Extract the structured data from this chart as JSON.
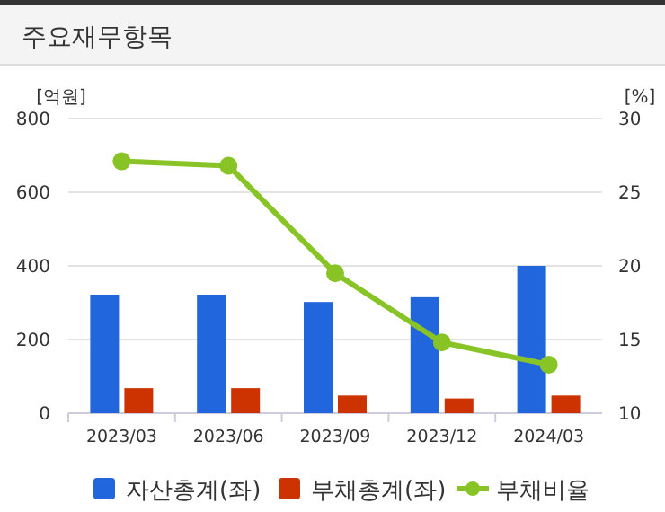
{
  "chart_data": {
    "type": "bar",
    "title": "주요재무항목",
    "ylabel": "[억원]",
    "y2label": "[%]",
    "categories": [
      "2023/03",
      "2023/06",
      "2023/09",
      "2023/12",
      "2024/03"
    ],
    "series": [
      {
        "name": "자산총계(좌)",
        "color": "#2266dd",
        "values": [
          322,
          322,
          302,
          315,
          400
        ]
      },
      {
        "name": "부채총계(좌)",
        "color": "#cc3300",
        "values": [
          68,
          68,
          48,
          40,
          48
        ]
      },
      {
        "name": "부채비율",
        "type": "line",
        "axis": "y2",
        "color": "#88c425",
        "values": [
          27.1,
          26.8,
          19.5,
          14.8,
          13.3
        ]
      }
    ],
    "ylim": [
      0,
      800
    ],
    "yticks": [
      0,
      200,
      400,
      600,
      800
    ],
    "y2lim": [
      10,
      30
    ],
    "y2ticks": [
      10,
      15,
      20,
      25,
      30
    ],
    "grid": "y",
    "legend": "bottom",
    "marker": "circle"
  }
}
